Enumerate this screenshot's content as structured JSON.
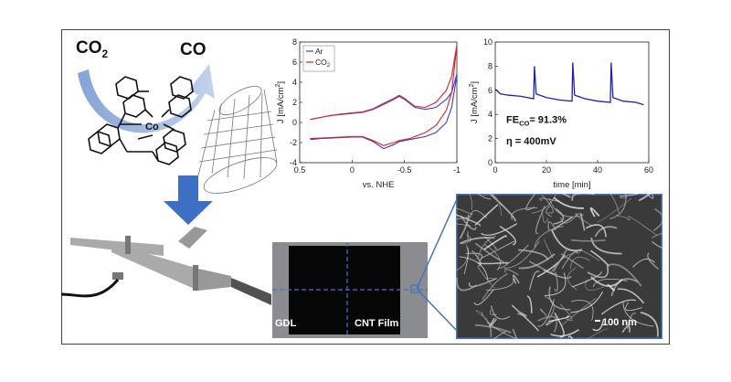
{
  "reaction": {
    "reactant": "CO",
    "reactant_sub": "2",
    "product": "CO",
    "catalyst_metal": "Co",
    "colors": {
      "arrow": "#9fb7dc",
      "down_arrow": "#3d6fc4",
      "frame_accent": "#4472c4"
    }
  },
  "cv_chart": {
    "ylabel": "J [mA/cm",
    "ylabel_sup": "2",
    "ylabel_end": "]",
    "xlabel": "vs. NHE",
    "x_ticks": [
      "0.5",
      "0",
      "-0.5",
      "-1"
    ],
    "y_ticks": [
      "8",
      "6",
      "4",
      "2",
      "0",
      "-2",
      "-4"
    ],
    "legend": [
      {
        "name": "Ar",
        "color": "#3b3bd0"
      },
      {
        "name": "CO",
        "sub": "2",
        "color": "#e02020"
      }
    ]
  },
  "ca_chart": {
    "ylabel": "J [mA/cm",
    "ylabel_sup": "2",
    "ylabel_end": "]",
    "xlabel": "time [min]",
    "x_ticks": [
      "0",
      "20",
      "40",
      "60"
    ],
    "y_ticks": [
      "10",
      "8",
      "6",
      "4",
      "2",
      "0"
    ],
    "annotation_fe": "FE",
    "annotation_fe_sub": "CO",
    "annotation_fe_value": "= 91.3%",
    "annotation_eta": "η = 400mV",
    "line_color": "#2020b0"
  },
  "electrode_photo": {
    "left_label": "GDL",
    "right_label": "CNT Film"
  },
  "sem_image": {
    "scale_label": "100 nm"
  },
  "chart_data": [
    {
      "type": "line",
      "x": [
        0.4,
        0.3,
        0.2,
        0.1,
        0.0,
        -0.1,
        -0.2,
        -0.3,
        -0.4,
        -0.45,
        -0.5,
        -0.55,
        -0.6,
        -0.7,
        -0.8,
        -0.9,
        -0.95,
        -1.0
      ],
      "series": [
        {
          "name": "Ar",
          "forward": [
            -1.7,
            -1.6,
            -1.55,
            -1.5,
            -1.45,
            -1.45,
            -1.9,
            -2.6,
            -2.2,
            -1.9,
            -1.8,
            -1.7,
            -1.6,
            -1.4,
            -1.0,
            0.0,
            1.5,
            4.7
          ],
          "reverse": [
            0.3,
            0.5,
            0.7,
            0.8,
            0.9,
            1.0,
            1.3,
            1.8,
            2.3,
            2.6,
            2.3,
            1.9,
            1.5,
            1.3,
            1.5,
            2.3,
            3.0,
            4.8
          ]
        },
        {
          "name": "CO2",
          "forward": [
            -1.6,
            -1.55,
            -1.5,
            -1.45,
            -1.4,
            -1.4,
            -1.8,
            -2.3,
            -2.0,
            -1.8,
            -1.7,
            -1.6,
            -1.4,
            -1.0,
            -0.3,
            1.2,
            3.0,
            7.7
          ],
          "reverse": [
            0.3,
            0.5,
            0.7,
            0.85,
            0.95,
            1.05,
            1.35,
            1.9,
            2.4,
            2.7,
            2.4,
            2.0,
            1.6,
            1.5,
            2.0,
            3.2,
            4.6,
            7.7
          ]
        }
      ],
      "xlabel": "vs. NHE",
      "ylabel": "J [mA/cm2]",
      "xlim": [
        0.5,
        -1.0
      ],
      "ylim": [
        -4,
        8
      ]
    },
    {
      "type": "line",
      "x": [
        0,
        2,
        5,
        10,
        15,
        15.3,
        16,
        20,
        25,
        30,
        30.3,
        31,
        35,
        40,
        45,
        45.3,
        46,
        50,
        55,
        58
      ],
      "series": [
        {
          "name": "",
          "values": [
            6.1,
            5.7,
            5.6,
            5.5,
            5.3,
            8.0,
            5.7,
            5.4,
            5.2,
            5.1,
            8.3,
            5.6,
            5.3,
            5.1,
            5.0,
            8.3,
            5.4,
            5.1,
            5.0,
            4.8
          ]
        }
      ],
      "xlabel": "time [min]",
      "ylabel": "J [mA/cm2]",
      "xlim": [
        0,
        60
      ],
      "ylim": [
        0,
        10
      ]
    }
  ]
}
